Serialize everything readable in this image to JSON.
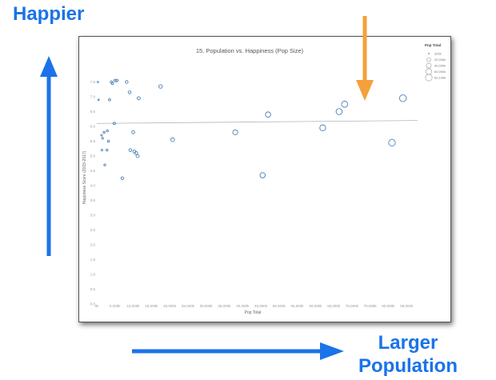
{
  "slide": {
    "top_label": "Happier",
    "bottom_label_line1": "Larger",
    "bottom_label_line2": "Population",
    "arrow_color": "#1a73e8",
    "marker_arrow_color": "#f5a03a"
  },
  "chart_data": {
    "type": "scatter",
    "title": "15. Population vs. Happiness (Pop Size)",
    "xlabel": "Pop Total",
    "ylabel": "Happiness Score (2015-2017)",
    "xlim": [
      0,
      90000000
    ],
    "ylim": [
      0,
      8
    ],
    "x_ticks": [
      "0k",
      "5,000k",
      "10,000k",
      "15,000k",
      "20,000k",
      "25,000k",
      "30,000k",
      "35,000k",
      "40,000k",
      "45,000k",
      "50,000k",
      "55,000k",
      "60,000k",
      "65,000k",
      "70,000k",
      "75,000k",
      "80,000k",
      "85,000k"
    ],
    "y_ticks": [
      "0.0",
      "0.5",
      "1.0",
      "1.5",
      "2.0",
      "2.5",
      "3.0",
      "3.5",
      "4.0",
      "4.5",
      "5.0",
      "5.5",
      "6.0",
      "6.5",
      "7.0",
      "7.5"
    ],
    "trend_line": {
      "x": [
        0,
        88000000
      ],
      "y": [
        6.1,
        6.2
      ]
    },
    "marker_color": "#4a7fb5",
    "legend": {
      "title": "Pop Total",
      "entries": [
        "332k",
        "20,000k",
        "40,000k",
        "60,000k",
        "82,194k"
      ],
      "placement": "top-right"
    },
    "points": [
      {
        "x": 300000,
        "y": 7.5
      },
      {
        "x": 500000,
        "y": 6.9
      },
      {
        "x": 1300000,
        "y": 5.7
      },
      {
        "x": 1400000,
        "y": 5.2
      },
      {
        "x": 1600000,
        "y": 5.6
      },
      {
        "x": 2000000,
        "y": 5.8
      },
      {
        "x": 2200000,
        "y": 4.7
      },
      {
        "x": 2800000,
        "y": 5.2
      },
      {
        "x": 2900000,
        "y": 5.85
      },
      {
        "x": 3200000,
        "y": 5.5
      },
      {
        "x": 3500000,
        "y": 6.9
      },
      {
        "x": 4000000,
        "y": 7.5
      },
      {
        "x": 4300000,
        "y": 7.45
      },
      {
        "x": 4800000,
        "y": 6.1
      },
      {
        "x": 5000000,
        "y": 7.55
      },
      {
        "x": 5500000,
        "y": 7.55
      },
      {
        "x": 7000000,
        "y": 4.25
      },
      {
        "x": 8200000,
        "y": 7.5
      },
      {
        "x": 9000000,
        "y": 7.15
      },
      {
        "x": 9200000,
        "y": 5.2
      },
      {
        "x": 10000000,
        "y": 5.8
      },
      {
        "x": 10300000,
        "y": 5.15
      },
      {
        "x": 10800000,
        "y": 5.1
      },
      {
        "x": 11500000,
        "y": 6.95
      },
      {
        "x": 11200000,
        "y": 5.0
      },
      {
        "x": 17500000,
        "y": 7.35
      },
      {
        "x": 20800000,
        "y": 5.55
      },
      {
        "x": 38000000,
        "y": 5.8
      },
      {
        "x": 45500000,
        "y": 4.35
      },
      {
        "x": 47000000,
        "y": 6.4
      },
      {
        "x": 62000000,
        "y": 5.95
      },
      {
        "x": 66500000,
        "y": 6.5
      },
      {
        "x": 68000000,
        "y": 6.75
      },
      {
        "x": 81000000,
        "y": 5.45
      },
      {
        "x": 84000000,
        "y": 6.95
      }
    ]
  }
}
